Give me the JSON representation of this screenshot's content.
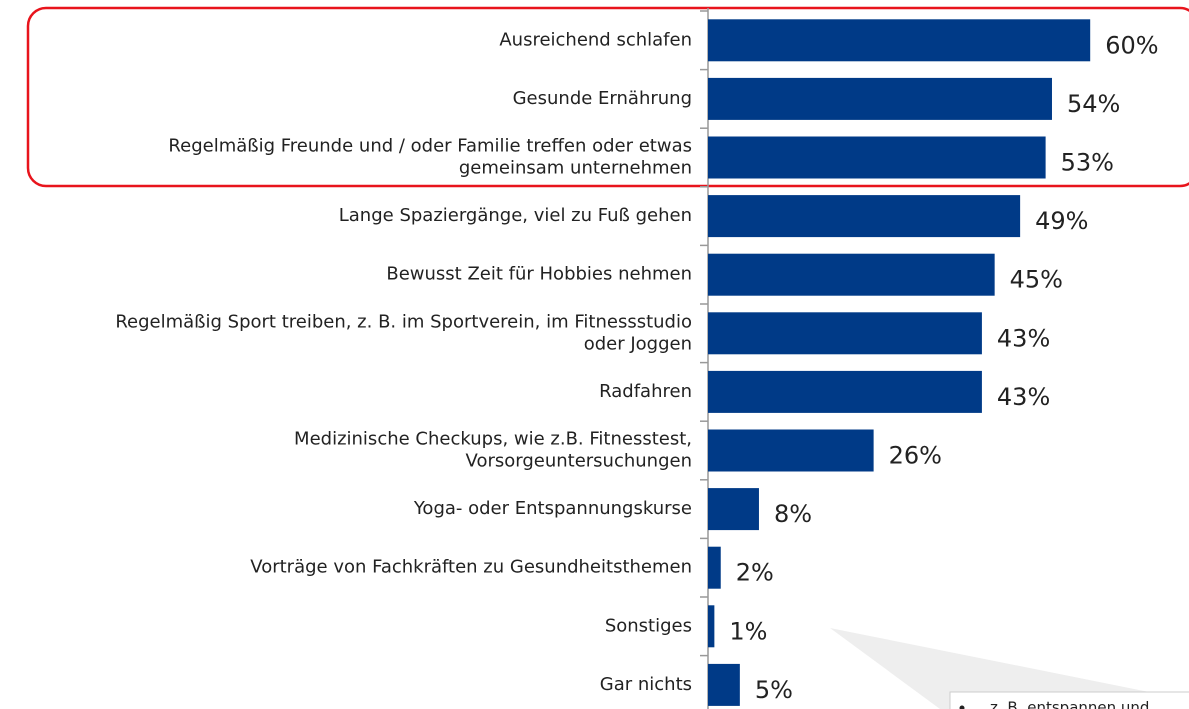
{
  "chart_data": {
    "type": "bar",
    "orientation": "horizontal",
    "categories": [
      "Ausreichend schlafen",
      "Gesunde Ernährung",
      "Regelmäßig Freunde und / oder Familie treffen oder etwas\ngemeinsam unternehmen",
      "Lange Spaziergänge, viel zu Fuß gehen",
      "Bewusst Zeit für Hobbies nehmen",
      "Regelmäßig Sport treiben, z. B. im Sportverein, im Fitnessstudio\noder Joggen",
      "Radfahren",
      "Medizinische Checkups, wie z.B. Fitnesstest,\nVorsorgeuntersuchungen",
      "Yoga- oder Entspannungskurse",
      "Vorträge von Fachkräften zu Gesundheitsthemen",
      "Sonstiges",
      "Gar nichts"
    ],
    "values": [
      60,
      54,
      53,
      49,
      45,
      43,
      43,
      26,
      8,
      2,
      1,
      5
    ],
    "value_labels": [
      "60%",
      "54%",
      "53%",
      "49%",
      "45%",
      "43%",
      "43%",
      "26%",
      "8%",
      "2%",
      "1%",
      "5%"
    ],
    "color": "#003a87",
    "xlim": [
      0,
      100
    ],
    "annotation": "z. B. entspannen und"
  }
}
